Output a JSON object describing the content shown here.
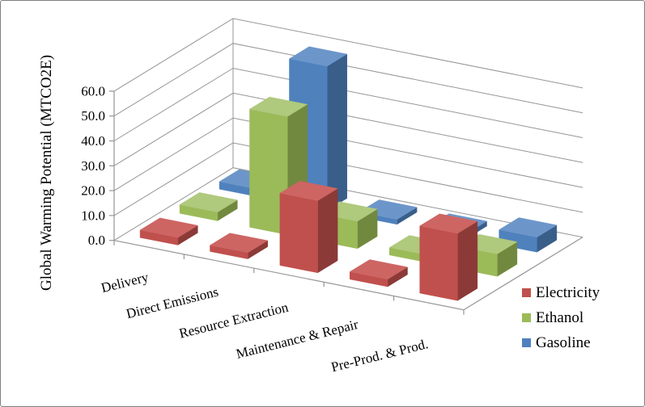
{
  "chart_data": {
    "type": "bar",
    "subtype": "3d-column",
    "title": "",
    "ylabel": "Global Warming Potential (MTCO2E)",
    "ylim": [
      0,
      60
    ],
    "ytick_step": 10,
    "ytick_labels": [
      "0.0",
      "10.0",
      "20.0",
      "30.0",
      "40.0",
      "50.0",
      "60.0"
    ],
    "grid": true,
    "legend_position": "right",
    "categories": [
      "Delivery",
      "Direct Emissions",
      "Resource Extraction",
      "Maintenance & Repair",
      "Pre-Prod. & Prod."
    ],
    "series": [
      {
        "name": "Electricity",
        "values": [
          3,
          2.5,
          29,
          3,
          27
        ],
        "color": "#C0504D",
        "color_top": "#CD6563",
        "color_side": "#8B3A37"
      },
      {
        "name": "Ethanol",
        "values": [
          3.5,
          47.5,
          11,
          3,
          9
        ],
        "color": "#9BBB59",
        "color_top": "#AFC97D",
        "color_side": "#71893F"
      },
      {
        "name": "Gasoline",
        "values": [
          3,
          58,
          2,
          2,
          6
        ],
        "color": "#4F81BD",
        "color_top": "#6C96C9",
        "color_side": "#395E8A"
      }
    ]
  },
  "frame": {
    "background": "#FFFFFF",
    "border_color": "#7F7F7F",
    "grid_color": "#969696",
    "axis_color": "#969696",
    "text_color": "#000000"
  }
}
